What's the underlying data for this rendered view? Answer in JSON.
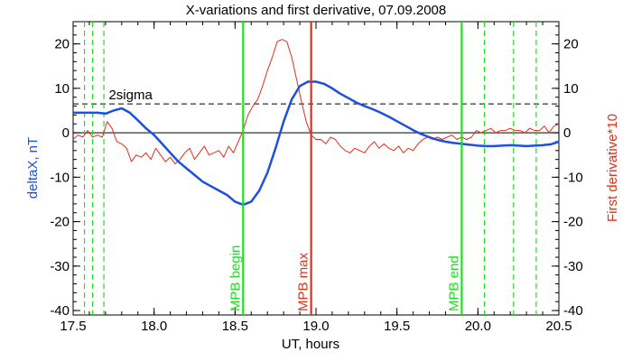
{
  "chart_data": {
    "type": "line",
    "title": "X-variations and first derivative, 07.09.2008",
    "xlabel": "UT, hours",
    "ylabel_left": "deltaX, nT",
    "ylabel_right": "First derivative*10",
    "xlim": [
      17.5,
      20.5
    ],
    "ylim_left": [
      -41,
      25
    ],
    "ylim_right": [
      -41,
      25
    ],
    "x_ticks": [
      "17.5",
      "18.0",
      "18.5",
      "19.0",
      "19.5",
      "20.0",
      "20.5"
    ],
    "y_ticks_left": [
      "20",
      "10",
      "0",
      "-10",
      "-20",
      "-30",
      "-40"
    ],
    "y_ticks_right": [
      "20",
      "10",
      "0",
      "-10",
      "-20",
      "-30",
      "-40"
    ],
    "colors": {
      "deltaX": "#1f4fe0",
      "derivative": "#e0301c",
      "mpb_lines": "#22dd22",
      "max_line": "#e0301c",
      "zero_line": "#000000",
      "sigma_line": "#000000"
    },
    "sigma_label": "2sigma",
    "sigma_level": 6.5,
    "zero_level": 0,
    "vlines": [
      {
        "name": "MPB begin",
        "x": 18.55,
        "color": "#22dd22",
        "style": "solid",
        "label": "MPB begin"
      },
      {
        "name": "MPB max",
        "x": 18.97,
        "color": "#e0301c",
        "style": "solid",
        "label": "MPB max"
      },
      {
        "name": "MPB end",
        "x": 19.9,
        "color": "#22dd22",
        "style": "solid",
        "label": "MPB end"
      }
    ],
    "dashed_vlines": [
      17.57,
      17.62,
      17.69,
      20.04,
      20.22,
      20.36
    ],
    "series": [
      {
        "name": "deltaX",
        "axis": "left",
        "x": [
          17.5,
          17.55,
          17.6,
          17.65,
          17.7,
          17.75,
          17.8,
          17.85,
          17.9,
          17.95,
          18.0,
          18.05,
          18.1,
          18.15,
          18.2,
          18.25,
          18.3,
          18.35,
          18.4,
          18.45,
          18.5,
          18.55,
          18.6,
          18.65,
          18.7,
          18.75,
          18.8,
          18.85,
          18.9,
          18.95,
          19.0,
          19.05,
          19.1,
          19.15,
          19.2,
          19.25,
          19.3,
          19.35,
          19.4,
          19.45,
          19.5,
          19.55,
          19.6,
          19.65,
          19.7,
          19.75,
          19.8,
          19.85,
          19.9,
          19.95,
          20.0,
          20.05,
          20.1,
          20.15,
          20.2,
          20.25,
          20.3,
          20.35,
          20.4,
          20.45,
          20.5
        ],
        "y": [
          4.5,
          4.5,
          4.5,
          4.5,
          4.3,
          5.0,
          5.5,
          4.5,
          2.8,
          1.0,
          -0.5,
          -2.5,
          -4.5,
          -6.5,
          -8.0,
          -9.5,
          -11.0,
          -12.0,
          -13.0,
          -14.0,
          -15.5,
          -16.2,
          -15.5,
          -13.0,
          -9.0,
          -3.5,
          2.5,
          7.5,
          10.5,
          11.5,
          11.5,
          11.0,
          10.0,
          8.8,
          7.8,
          6.8,
          6.0,
          5.3,
          4.5,
          3.6,
          2.6,
          1.6,
          0.6,
          -0.3,
          -1.0,
          -1.6,
          -2.0,
          -2.3,
          -2.5,
          -2.7,
          -2.9,
          -3.0,
          -3.0,
          -2.9,
          -2.8,
          -2.9,
          -3.0,
          -2.9,
          -2.8,
          -2.6,
          -2.0
        ]
      },
      {
        "name": "First derivative*10",
        "axis": "right",
        "x": [
          17.5,
          17.53,
          17.56,
          17.59,
          17.62,
          17.65,
          17.68,
          17.71,
          17.74,
          17.77,
          17.8,
          17.83,
          17.86,
          17.89,
          17.92,
          17.95,
          17.98,
          18.01,
          18.04,
          18.07,
          18.1,
          18.13,
          18.16,
          18.19,
          18.22,
          18.25,
          18.28,
          18.31,
          18.34,
          18.37,
          18.4,
          18.43,
          18.46,
          18.49,
          18.52,
          18.55,
          18.58,
          18.61,
          18.64,
          18.67,
          18.7,
          18.73,
          18.76,
          18.79,
          18.82,
          18.85,
          18.88,
          18.91,
          18.94,
          18.97,
          19.0,
          19.03,
          19.06,
          19.09,
          19.12,
          19.15,
          19.18,
          19.21,
          19.24,
          19.27,
          19.3,
          19.33,
          19.36,
          19.39,
          19.42,
          19.45,
          19.48,
          19.51,
          19.54,
          19.57,
          19.6,
          19.63,
          19.66,
          19.69,
          19.72,
          19.75,
          19.78,
          19.81,
          19.84,
          19.87,
          19.9,
          19.93,
          19.96,
          19.99,
          20.02,
          20.05,
          20.08,
          20.11,
          20.14,
          20.17,
          20.2,
          20.23,
          20.26,
          20.29,
          20.32,
          20.35,
          20.38,
          20.41,
          20.44,
          20.47,
          20.5
        ],
        "y": [
          -1.5,
          -0.5,
          -1.0,
          0.5,
          -1.0,
          -0.5,
          -1.0,
          2.5,
          1.0,
          -2.0,
          -2.5,
          -3.5,
          -6.5,
          -5.0,
          -5.5,
          -4.5,
          -6.0,
          -3.5,
          -5.0,
          -6.5,
          -5.5,
          -7.0,
          -6.0,
          -4.5,
          -3.5,
          -6.0,
          -4.5,
          -3.0,
          -5.0,
          -4.5,
          -4.0,
          -5.5,
          -3.0,
          -4.5,
          -2.0,
          0.5,
          4.0,
          6.0,
          7.5,
          10.5,
          14.0,
          17.0,
          20.5,
          21.0,
          20.5,
          17.0,
          12.0,
          7.0,
          2.5,
          -0.5,
          -1.5,
          -1.5,
          -2.5,
          -1.0,
          -1.5,
          -3.0,
          -4.0,
          -4.5,
          -3.5,
          -4.0,
          -4.5,
          -3.0,
          -2.0,
          -3.5,
          -2.5,
          -3.5,
          -4.0,
          -3.0,
          -4.5,
          -3.5,
          -4.0,
          -2.5,
          -1.5,
          -1.0,
          -1.5,
          -1.0,
          -1.5,
          -1.0,
          -0.5,
          -1.5,
          -1.0,
          -1.5,
          -1.0,
          0.5,
          0.0,
          0.5,
          1.0,
          0.0,
          0.5,
          0.5,
          1.0,
          0.5,
          0.5,
          0.0,
          1.0,
          0.5,
          0.5,
          1.5,
          0.0,
          1.5,
          2.0
        ]
      }
    ]
  }
}
